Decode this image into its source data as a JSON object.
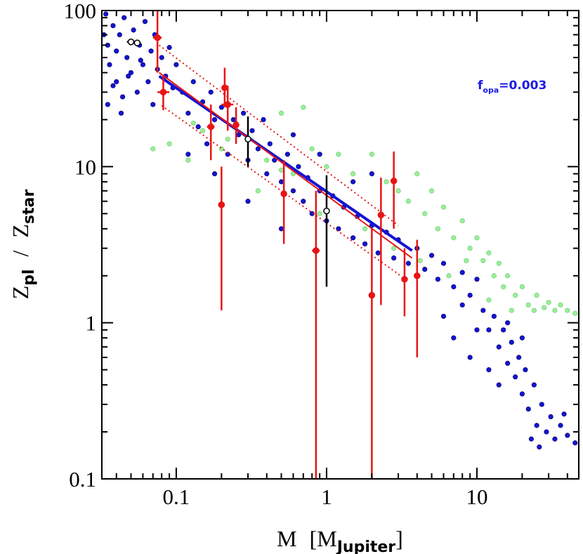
{
  "chart_data": {
    "type": "scatter",
    "xlim": [
      0.032,
      47.6
    ],
    "ylim": [
      0.1,
      100
    ],
    "xscale": "log",
    "yscale": "log",
    "xticks": [
      0.1,
      1,
      10
    ],
    "yticks": [
      0.1,
      1,
      10,
      100
    ],
    "xminor_ticks": [
      0.04,
      0.05,
      0.06,
      0.07,
      0.08,
      0.09,
      0.2,
      0.3,
      0.4,
      0.5,
      0.6,
      0.7,
      0.8,
      0.9,
      2,
      3,
      4,
      5,
      6,
      7,
      8,
      9,
      20,
      30,
      40
    ],
    "yminor_ticks": [
      0.2,
      0.3,
      0.4,
      0.5,
      0.6,
      0.7,
      0.8,
      0.9,
      2,
      3,
      4,
      5,
      6,
      7,
      8,
      9,
      20,
      30,
      40,
      50,
      60,
      70,
      80,
      90
    ],
    "xlabel": [
      "M",
      "[M",
      "Jupiter",
      "]"
    ],
    "ylabel": [
      "Z",
      "pl",
      "/",
      "Z",
      "star"
    ],
    "annotation": [
      "f",
      "opa",
      "=0.003"
    ],
    "annotation_color": "#1a1ae6",
    "series": [
      {
        "color": "#98f098",
        "x": [
          0.07,
          0.09,
          0.12,
          0.15,
          0.2,
          0.25,
          0.3,
          0.4,
          0.5,
          0.6,
          0.7,
          0.8,
          1,
          1.2,
          1.5,
          2,
          2.5,
          3,
          3.5,
          4,
          4.5,
          5,
          5.5,
          6,
          7,
          8,
          9,
          10,
          11,
          12,
          13,
          14,
          15,
          16,
          18,
          20,
          22,
          25,
          28,
          30,
          33,
          36,
          40,
          45,
          0.35,
          0.9,
          1.8,
          2.8,
          4.2,
          6.5,
          0.5,
          8.5,
          12,
          17,
          24,
          0.22,
          0.13
        ],
        "values": [
          13,
          14,
          11,
          17,
          13,
          19,
          15,
          11,
          22,
          9,
          24,
          13,
          10,
          12,
          9,
          12,
          8,
          7,
          6,
          9,
          5,
          7,
          4,
          5.5,
          3.5,
          4.5,
          3,
          3.5,
          2.5,
          2.8,
          2,
          2.4,
          1.7,
          2,
          1.5,
          1.7,
          1.3,
          1.5,
          1.25,
          1.35,
          1.2,
          1.3,
          1.2,
          1.15,
          7,
          5,
          4,
          3,
          2.5,
          2,
          9.5,
          2.5,
          1.4,
          1.2,
          1.2,
          15,
          19
        ]
      },
      {
        "color": "#1414d2",
        "x": [
          0.035,
          0.036,
          0.038,
          0.04,
          0.04,
          0.042,
          0.044,
          0.045,
          0.047,
          0.05,
          0.052,
          0.055,
          0.057,
          0.06,
          0.062,
          0.065,
          0.068,
          0.07,
          0.072,
          0.075,
          0.08,
          0.085,
          0.09,
          0.095,
          0.1,
          0.035,
          0.038,
          0.043,
          0.048,
          0.058,
          0.033,
          0.034,
          0.11,
          0.12,
          0.13,
          0.14,
          0.15,
          0.16,
          0.17,
          0.18,
          0.2,
          0.22,
          0.24,
          0.26,
          0.28,
          0.3,
          0.32,
          0.35,
          0.38,
          0.4,
          0.42,
          0.45,
          0.5,
          0.55,
          0.6,
          0.65,
          0.7,
          0.75,
          0.8,
          0.9,
          1.0,
          1.1,
          1.2,
          1.3,
          1.5,
          1.6,
          1.8,
          2.0,
          2.2,
          2.5,
          2.8,
          3.0,
          3.5,
          4.0,
          4.5,
          5,
          5.5,
          6,
          7,
          8,
          9,
          10,
          0.12,
          0.18,
          0.6,
          0.9,
          1.5,
          2,
          0.3,
          0.5,
          11,
          12,
          13,
          14,
          15,
          16,
          17,
          18,
          19,
          20,
          21,
          22,
          24,
          25,
          27,
          29,
          31,
          33,
          36,
          40,
          45,
          6,
          7,
          8,
          9,
          10,
          12,
          14,
          23,
          16,
          20,
          26,
          38
        ],
        "values": [
          60,
          45,
          80,
          35,
          55,
          70,
          28,
          90,
          50,
          40,
          75,
          30,
          60,
          45,
          85,
          35,
          55,
          25,
          70,
          42,
          50,
          38,
          58,
          32,
          45,
          25,
          33,
          22,
          38,
          48,
          70,
          95,
          30,
          22,
          35,
          18,
          26,
          14,
          30,
          20,
          24,
          12,
          20,
          16,
          22,
          11,
          17,
          13,
          20,
          9,
          14,
          11,
          8,
          12,
          7,
          10,
          6,
          8.5,
          5,
          7,
          4.5,
          6.5,
          4,
          5.5,
          3.5,
          4.8,
          3.2,
          4.2,
          2.8,
          3.8,
          2.6,
          3.4,
          2.4,
          3,
          2.2,
          2.7,
          1.9,
          2.4,
          1.7,
          2.1,
          1.5,
          1.9,
          12,
          9,
          16,
          12,
          8,
          9,
          6,
          4,
          1.2,
          0.9,
          1.1,
          0.7,
          0.9,
          0.55,
          0.75,
          0.45,
          0.6,
          0.35,
          0.5,
          0.28,
          0.4,
          0.22,
          0.3,
          0.2,
          0.25,
          0.18,
          0.22,
          0.19,
          0.17,
          1.1,
          0.8,
          1.3,
          0.6,
          0.9,
          0.5,
          0.4,
          0.18,
          1.0,
          0.8,
          0.16,
          0.26
        ]
      }
    ],
    "errorbars": [
      {
        "color": "#e81414",
        "marker": "filled",
        "x": [
          0.075,
          0.082,
          0.17,
          0.2,
          0.21,
          0.22,
          0.25,
          0.52,
          0.85,
          2.0,
          2.3,
          2.8,
          3.3,
          4.0
        ],
        "values": [
          67,
          30,
          18,
          5.7,
          32,
          25,
          18.5,
          6.7,
          2.9,
          1.5,
          4.9,
          8.1,
          1.9,
          2.0
        ],
        "ylow": [
          40,
          23,
          11,
          1.2,
          24,
          17,
          14,
          3.2,
          0.1,
          0.1,
          1.3,
          4,
          1.1,
          0.6
        ],
        "yhigh": [
          100,
          38,
          25,
          10,
          43,
          33,
          24,
          11,
          7,
          4,
          8.5,
          12.5,
          3,
          3.4
        ],
        "xlow": [
          0.07,
          0.075,
          0.16,
          0.19,
          0.2,
          0.2,
          0.24,
          0.5,
          0.8,
          1.9,
          2.2,
          2.7,
          3.2,
          3.8
        ],
        "xhigh": [
          0.08,
          0.09,
          0.18,
          0.21,
          0.22,
          0.24,
          0.26,
          0.54,
          0.9,
          2.1,
          2.4,
          2.9,
          3.4,
          4.2
        ]
      },
      {
        "color": "#000000",
        "marker": "open",
        "x": [
          0.3,
          1.0,
          0.05,
          0.055
        ],
        "values": [
          15,
          5.2,
          63,
          62
        ],
        "ylow": [
          10,
          1.7,
          60,
          59
        ],
        "yhigh": [
          21,
          8.8,
          66,
          65
        ],
        "xlow": [
          0.29,
          0.97,
          0.047,
          0.052
        ],
        "xhigh": [
          0.31,
          1.03,
          0.053,
          0.058
        ]
      }
    ],
    "lines": [
      {
        "color": "#1414d2",
        "style": "solid",
        "width": 4,
        "x": [
          0.077,
          3.7
        ],
        "values": [
          38,
          2.9
        ]
      },
      {
        "color": "#e81414",
        "style": "solid",
        "width": 2,
        "x": [
          0.077,
          3.7
        ],
        "values": [
          40,
          2.6
        ]
      },
      {
        "color": "#e81414",
        "style": "dotted",
        "width": 2,
        "x": [
          0.077,
          3.0
        ],
        "values": [
          60,
          4.2
        ]
      },
      {
        "color": "#e81414",
        "style": "dotted",
        "width": 2,
        "x": [
          0.08,
          3.16
        ],
        "values": [
          24.6,
          1.98
        ]
      }
    ]
  }
}
